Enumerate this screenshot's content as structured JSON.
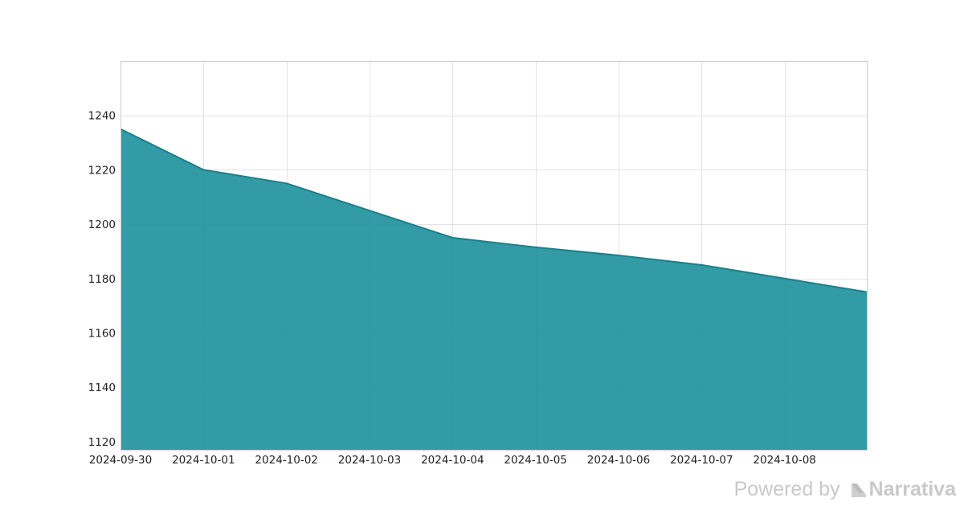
{
  "chart_data": {
    "type": "area",
    "title": "",
    "xlabel": "",
    "ylabel": "",
    "x": [
      "2024-09-30",
      "2024-10-01",
      "2024-10-02",
      "2024-10-03",
      "2024-10-04",
      "2024-10-05",
      "2024-10-06",
      "2024-10-07",
      "2024-10-08",
      "2024-10-09"
    ],
    "series": [
      {
        "values": [
          1235,
          1220,
          1215,
          1205,
          1195,
          1191.5,
          1188.5,
          1185,
          1180,
          1175
        ]
      }
    ],
    "x_tick_labels": [
      "2024-09-30",
      "2024-10-01",
      "2024-10-02",
      "2024-10-03",
      "2024-10-04",
      "2024-10-05",
      "2024-10-06",
      "2024-10-07",
      "2024-10-08"
    ],
    "y_ticks": [
      1120,
      1140,
      1160,
      1180,
      1200,
      1220,
      1240
    ],
    "ylim": [
      1117,
      1260
    ],
    "grid": true,
    "legend": "none",
    "colors": {
      "fill": "#21929e",
      "line": "#1a8089",
      "grid": "#e3e3e3",
      "frame": "#cccccc"
    }
  },
  "footer": {
    "powered_by": "Powered by",
    "brand": "Narrativa",
    "icon": "narrativa-logo-icon"
  }
}
